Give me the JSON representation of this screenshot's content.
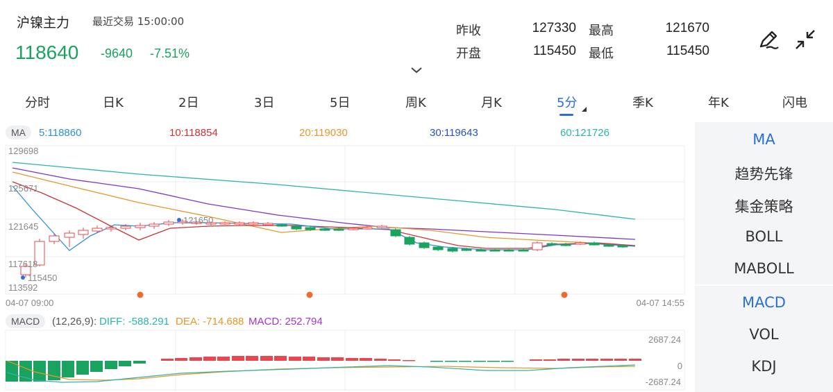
{
  "header": {
    "title": "沪镍主力",
    "recent_label": "最近交易 15:00:00",
    "price": "118640",
    "change": "-9640",
    "change_pct": "-7.51%",
    "stats": {
      "prev_close_label": "昨收",
      "prev_close": "127330",
      "high_label": "最高",
      "high": "121670",
      "open_label": "开盘",
      "open": "115450",
      "low_label": "最低",
      "low": "115450"
    }
  },
  "tabs": [
    "分时",
    "日K",
    "2日",
    "3日",
    "5日",
    "周K",
    "月K",
    "5分",
    "季K",
    "年K",
    "闪电"
  ],
  "active_tab": "5分",
  "ma_legend": {
    "chip": "MA",
    "ma5": "5:118860",
    "ma10": "10:118854",
    "ma20": "20:119030",
    "ma30": "30:119643",
    "ma60": "60:121726"
  },
  "main_axis": {
    "y_ticks": [
      "129698",
      "125671",
      "121645",
      "117618",
      "113592"
    ],
    "x_start": "04-07 09:00",
    "x_end": "04-07 14:55",
    "high_marker": "121650",
    "low_marker": "115450"
  },
  "macd_legend": {
    "chip": "MACD",
    "params": "(12,26,9):",
    "diff": "DIFF: -588.291",
    "dea": "DEA: -714.688",
    "macd": "MACD: 252.794"
  },
  "macd_axis": {
    "top": "2687.24",
    "zero": "0",
    "bottom": "-2687.24"
  },
  "side_menu": {
    "main": [
      "MA",
      "趋势先锋",
      "集金策略",
      "BOLL",
      "MABOLL"
    ],
    "sub": [
      "MACD",
      "VOL",
      "KDJ"
    ]
  },
  "colors": {
    "up": "#e8474f",
    "down": "#1aa35f",
    "ma5": "#2f8fd8",
    "ma10": "#cc3333",
    "ma20": "#e8962c",
    "ma30": "#7a36c9",
    "ma60": "#2cb5a6",
    "accent": "#2a6fd6"
  }
}
